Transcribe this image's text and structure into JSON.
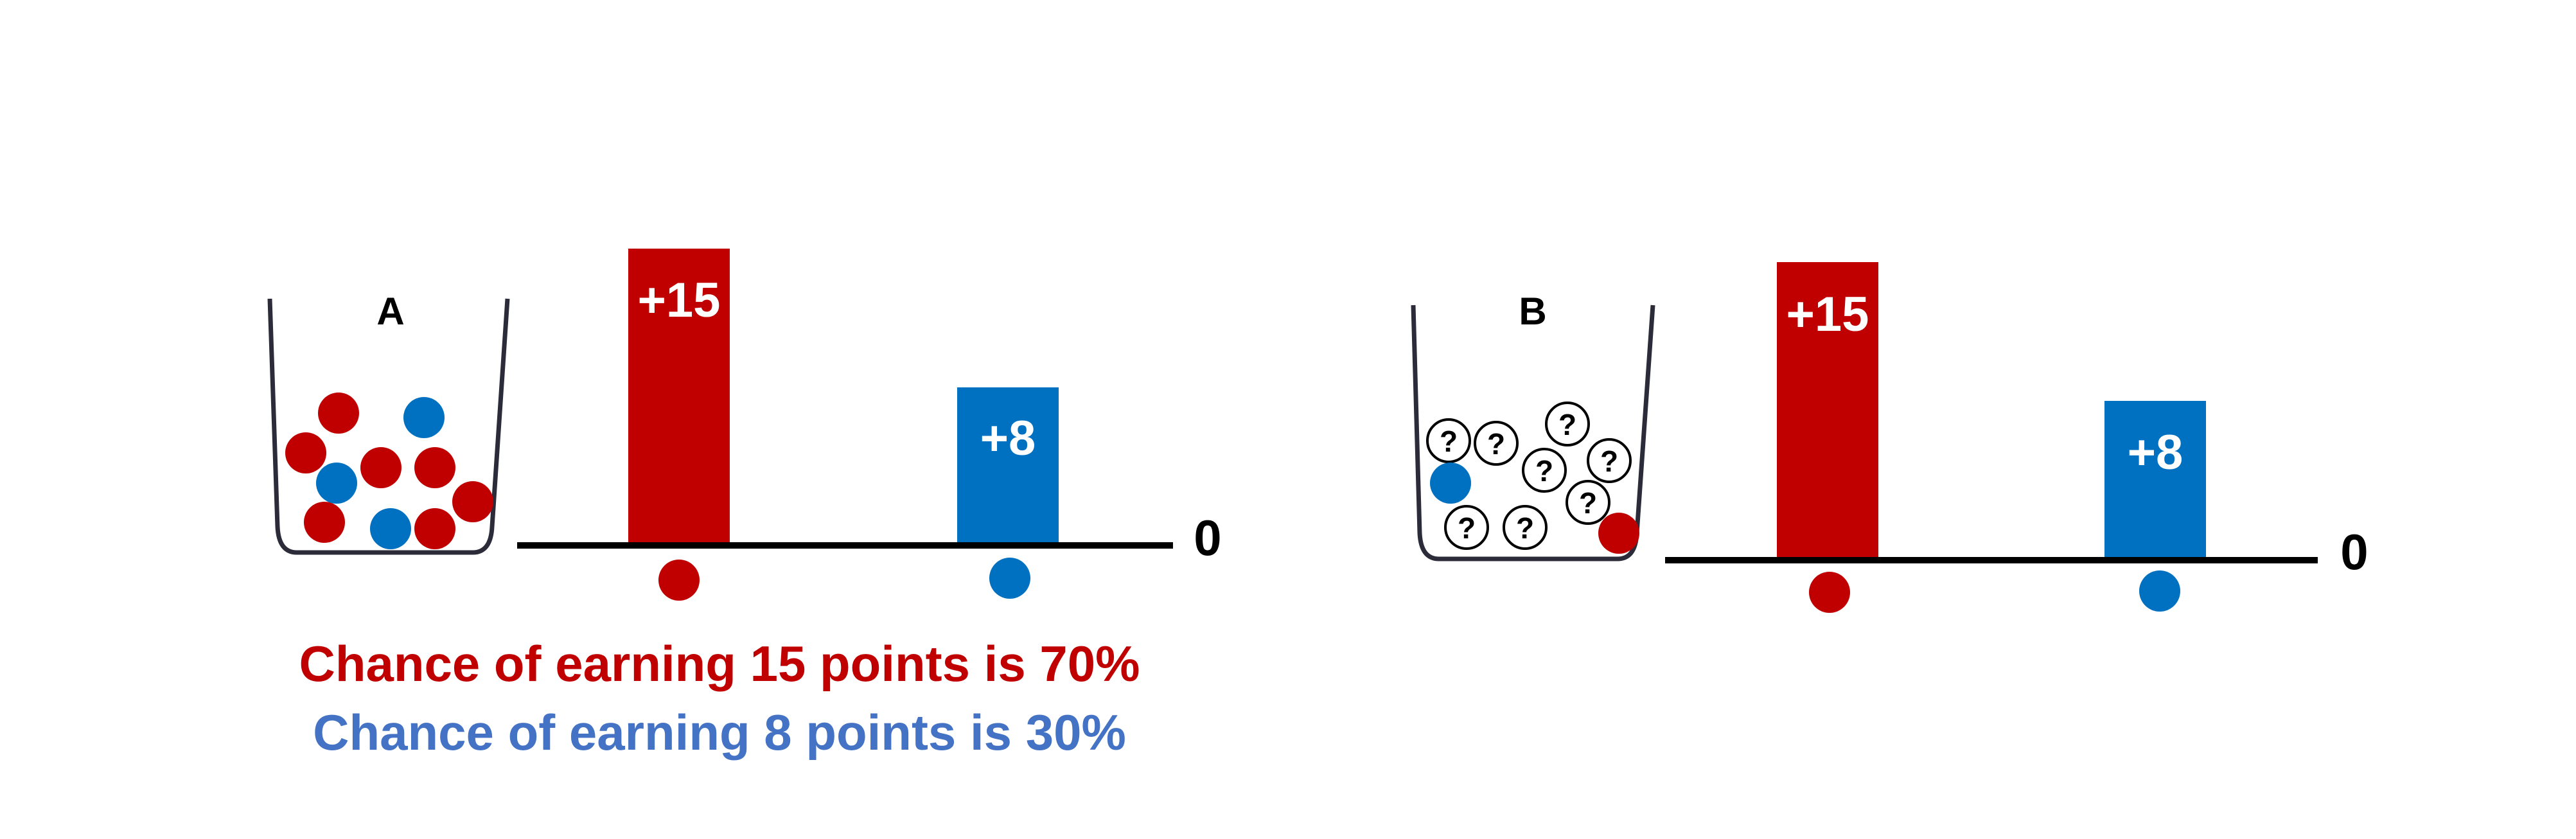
{
  "colors": {
    "red": "#C00000",
    "blue": "#0070C0",
    "text_blue": "#4472C4",
    "axis": "#000000",
    "jar": "#2b2b3a"
  },
  "panel_a": {
    "jar_label": "A",
    "high_bar": {
      "label": "+15",
      "value": 15
    },
    "low_bar": {
      "label": "+8",
      "value": 8
    },
    "zero_label": "0",
    "chance_red": "Chance of earning 15 points is 70%",
    "chance_blue": "Chance of earning 8 points is 30%",
    "balls": {
      "red": 7,
      "blue": 3
    }
  },
  "panel_b": {
    "jar_label": "B",
    "high_bar": {
      "label": "+15",
      "value": 15
    },
    "low_bar": {
      "label": "+8",
      "value": 8
    },
    "zero_label": "0",
    "unknown_mark": "?",
    "balls": {
      "red": 1,
      "blue": 1,
      "unknown": 8
    }
  }
}
